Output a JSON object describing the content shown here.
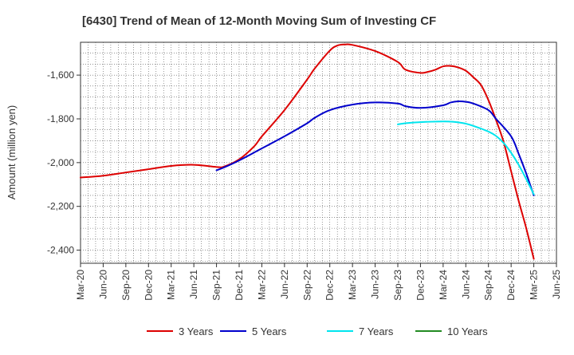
{
  "chart_data": {
    "type": "line",
    "title": "[6430]  Trend of Mean of 12-Month Moving Sum of Investing CF",
    "xlabel": "",
    "ylabel": "Amount (million yen)",
    "ylim": [
      -2460,
      -1450
    ],
    "yticks": [
      -2400,
      -2200,
      -2000,
      -1800,
      -1600
    ],
    "ytick_labels": [
      "-2,400",
      "-2,200",
      "-2,000",
      "-1,800",
      "-1,600"
    ],
    "x_start": "Mar-20",
    "x_end": "Jun-25",
    "xtick_labels": [
      "Mar-20",
      "Jun-20",
      "Sep-20",
      "Dec-20",
      "Mar-21",
      "Jun-21",
      "Sep-21",
      "Dec-21",
      "Mar-22",
      "Jun-22",
      "Sep-22",
      "Dec-22",
      "Mar-23",
      "Jun-23",
      "Sep-23",
      "Dec-23",
      "Mar-24",
      "Jun-24",
      "Sep-24",
      "Dec-24",
      "Mar-25",
      "Jun-25"
    ],
    "grid": true,
    "legend_position": "bottom",
    "series": [
      {
        "name": "3 Years",
        "color": "#dd0000",
        "points": [
          [
            "Mar-20",
            -2068
          ],
          [
            "Jun-20",
            -2060
          ],
          [
            "Sep-20",
            -2045
          ],
          [
            "Dec-20",
            -2030
          ],
          [
            "Mar-21",
            -2015
          ],
          [
            "Jun-21",
            -2010
          ],
          [
            "Sep-21",
            -2020
          ],
          [
            "Oct-21",
            -2018
          ],
          [
            "Dec-21",
            -1985
          ],
          [
            "Feb-22",
            -1925
          ],
          [
            "Mar-22",
            -1880
          ],
          [
            "Jun-22",
            -1760
          ],
          [
            "Sep-22",
            -1620
          ],
          [
            "Oct-22",
            -1570
          ],
          [
            "Dec-22",
            -1488
          ],
          [
            "Jan-23",
            -1465
          ],
          [
            "Feb-23",
            -1460
          ],
          [
            "Mar-23",
            -1462
          ],
          [
            "Jun-23",
            -1490
          ],
          [
            "Sep-23",
            -1540
          ],
          [
            "Oct-23",
            -1575
          ],
          [
            "Dec-23",
            -1590
          ],
          [
            "Jan-24",
            -1585
          ],
          [
            "Feb-24",
            -1575
          ],
          [
            "Mar-24",
            -1560
          ],
          [
            "Apr-24",
            -1558
          ],
          [
            "May-24",
            -1565
          ],
          [
            "Jun-24",
            -1580
          ],
          [
            "Jul-24",
            -1610
          ],
          [
            "Aug-24",
            -1645
          ],
          [
            "Sep-24",
            -1715
          ],
          [
            "Oct-24",
            -1805
          ],
          [
            "Nov-24",
            -1905
          ],
          [
            "Dec-24",
            -2040
          ],
          [
            "Jan-25",
            -2175
          ],
          [
            "Feb-25",
            -2300
          ],
          [
            "Mar-25",
            -2440
          ]
        ]
      },
      {
        "name": "5 Years",
        "color": "#0000cc",
        "points": [
          [
            "Sep-21",
            -2035
          ],
          [
            "Oct-21",
            -2022
          ],
          [
            "Dec-21",
            -1990
          ],
          [
            "Mar-22",
            -1935
          ],
          [
            "Jun-22",
            -1880
          ],
          [
            "Sep-22",
            -1820
          ],
          [
            "Oct-22",
            -1795
          ],
          [
            "Dec-22",
            -1760
          ],
          [
            "Mar-23",
            -1735
          ],
          [
            "Jun-23",
            -1725
          ],
          [
            "Sep-23",
            -1730
          ],
          [
            "Oct-23",
            -1742
          ],
          [
            "Dec-23",
            -1750
          ],
          [
            "Mar-24",
            -1738
          ],
          [
            "Apr-24",
            -1725
          ],
          [
            "May-24",
            -1720
          ],
          [
            "Jun-24",
            -1722
          ],
          [
            "Jul-24",
            -1730
          ],
          [
            "Sep-24",
            -1760
          ],
          [
            "Oct-24",
            -1800
          ],
          [
            "Dec-24",
            -1880
          ],
          [
            "Jan-25",
            -1960
          ],
          [
            "Feb-25",
            -2050
          ],
          [
            "Mar-25",
            -2150
          ]
        ]
      },
      {
        "name": "7 Years",
        "color": "#00e5ee",
        "points": [
          [
            "Sep-23",
            -1825
          ],
          [
            "Oct-23",
            -1820
          ],
          [
            "Dec-23",
            -1815
          ],
          [
            "Mar-24",
            -1812
          ],
          [
            "Apr-24",
            -1813
          ],
          [
            "May-24",
            -1816
          ],
          [
            "Jun-24",
            -1822
          ],
          [
            "Jul-24",
            -1832
          ],
          [
            "Sep-24",
            -1858
          ],
          [
            "Oct-24",
            -1878
          ],
          [
            "Nov-24",
            -1910
          ],
          [
            "Dec-24",
            -1955
          ],
          [
            "Jan-25",
            -2010
          ],
          [
            "Feb-25",
            -2075
          ],
          [
            "Mar-25",
            -2145
          ]
        ]
      },
      {
        "name": "10 Years",
        "color": "#228b22",
        "points": []
      }
    ]
  }
}
